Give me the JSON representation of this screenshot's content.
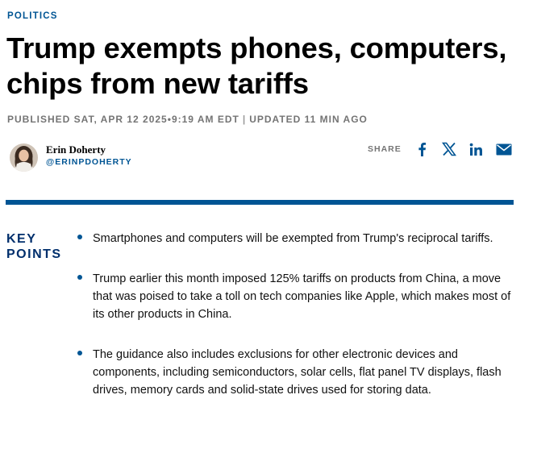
{
  "section": "POLITICS",
  "headline": {
    "line1": "Trump exempts phones, computers,",
    "line2": "chips from new tariffs"
  },
  "timestamp": {
    "published": "PUBLISHED SAT, APR 12 2025",
    "dot": "•",
    "time": "9:19 AM EDT",
    "separator": "|",
    "updated": "UPDATED 11 MIN AGO"
  },
  "author": {
    "name": "Erin Doherty",
    "handle": "@ERINPDOHERTY"
  },
  "share": {
    "label": "SHARE",
    "icons": [
      "facebook-icon",
      "x-icon",
      "linkedin-icon",
      "email-icon"
    ]
  },
  "colors": {
    "accent": "#005594",
    "key_points_label": "#002f6c",
    "meta_gray": "#747474"
  },
  "key_points": {
    "label_line1": "KEY",
    "label_line2": "POINTS",
    "items": [
      "Smartphones and computers will be exempted from Trump's reciprocal tariffs.",
      "Trump earlier this month imposed 125% tariffs on products from China, a move that was poised to take a toll on tech companies like Apple, which makes most of its other products in China.",
      "The guidance also includes exclusions for other electronic devices and components, including semiconductors, solar cells, flat panel TV displays, flash drives, memory cards and solid-state drives used for storing data."
    ]
  }
}
